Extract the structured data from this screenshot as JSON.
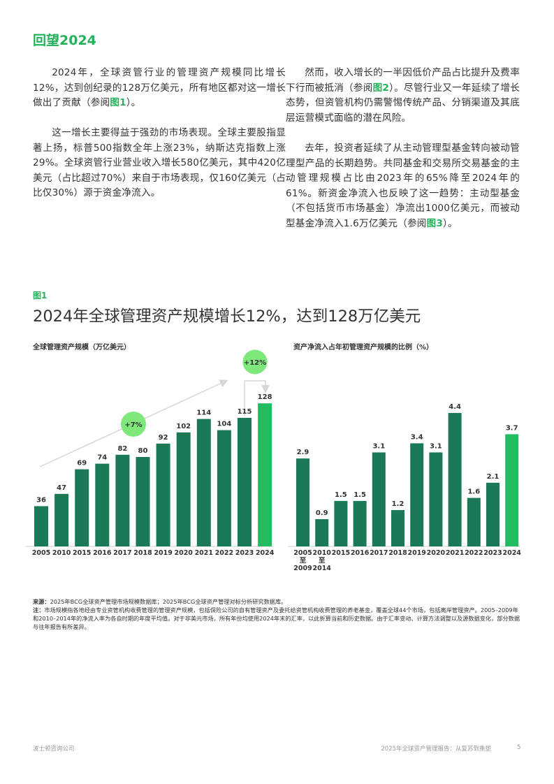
{
  "section_title": "回望2024",
  "left_column": {
    "p1": {
      "text": "2024年，全球资管行业的管理资产规模同比增长12%，达到创纪录的128万亿美元，所有地区都对这一增长做出了贡献（参阅",
      "ref": "图1",
      "end": "）。"
    },
    "p2": {
      "text": "这一增长主要得益于强劲的市场表现。全球主要股指显著上扬，标普500指数全年上涨23%，纳斯达克指数上涨29%。全球资管行业营业收入增长580亿美元，其中420亿美元（占比超过70%）来自于市场表现，仅160亿美元（占比仅30%）源于资金净流入。"
    }
  },
  "right_column": {
    "p1": {
      "text": "然而，收入增长的一半因低价产品占比提升及费率下行而被抵消（参阅",
      "ref": "图2",
      "end": "）。尽管行业又一年延续了增长态势，但资管机构仍需警惕传统产品、分销渠道及其底层运营模式面临的潜在风险。"
    },
    "p2": {
      "text": "去年，投资者延续了从主动管理型基金转向被动管理型产品的长期趋势。共同基金和交易所交易基金的主动管理规模占比由2023年的65%降至2024年的61%。新资金净流入也反映了这一趋势：主动型基金（不包括货币市场基金）净流出1000亿美元，而被动型基金净流入1.6万亿美元（参阅",
      "ref": "图3",
      "end": "）。"
    }
  },
  "figure": {
    "label": "图1",
    "title": "2024年全球管理资产规模增长12%，达到128万亿美元"
  },
  "chart_data": [
    {
      "type": "bar",
      "title": "全球管理资产规模（万亿美元）",
      "categories": [
        "2005",
        "2010",
        "2015",
        "2016",
        "2017",
        "2018",
        "2019",
        "2020",
        "2021",
        "2022",
        "2023",
        "2024"
      ],
      "values": [
        36,
        47,
        69,
        74,
        82,
        80,
        92,
        102,
        114,
        104,
        115,
        128
      ],
      "annotations": [
        "+7%",
        "+12%"
      ],
      "colors": {
        "bar": "#1a7a55",
        "highlight": "#22bb5f",
        "bubble": "#7ee87a",
        "arrow": "#d6d6d6"
      }
    },
    {
      "type": "bar",
      "title": "资产净流入占年初管理资产规模的比例（%）",
      "categories": [
        [
          "2005",
          "至",
          "2009"
        ],
        [
          "2010",
          "至",
          "2014"
        ],
        [
          "2015"
        ],
        [
          "2016"
        ],
        [
          "2017"
        ],
        [
          "2018"
        ],
        [
          "2019"
        ],
        [
          "2020"
        ],
        [
          "2021"
        ],
        [
          "2022"
        ],
        [
          "2023"
        ],
        [
          "2024"
        ]
      ],
      "values": [
        2.9,
        0.9,
        1.5,
        1.5,
        3.1,
        1.2,
        3.4,
        3.1,
        4.4,
        1.6,
        2.1,
        3.7
      ],
      "colors": {
        "bar": "#1a7a55",
        "highlight": "#22bb5f"
      }
    }
  ],
  "notes": {
    "source_label": "来源：",
    "source": "2025年BCG全球资产管理市场规模数据库；2025年BCG全球资产管理对标分析研究数据库。",
    "note_label": "注：",
    "note": "市场规模指各地经由专业资管机构收费管理的管理资产规模，包括保险公司的自有管理资产及委托给资管机构收费管理的养老基金，覆盖全球44个市场，包括离岸管理资产。2005–2009年和2010–2014年的净流入率为各自时期的年度平均值。对于非美元市场，所有年份均使用2024年末的汇率，以此折算当前和历史数据。由于汇率变动、计算方法调整以及源数据变化，部分数据与往年报告有所差异。"
  },
  "footer": {
    "left": "波士顿咨询公司",
    "right": "2025年全球资产管理报告：从复苏到重塑",
    "page": "5"
  }
}
